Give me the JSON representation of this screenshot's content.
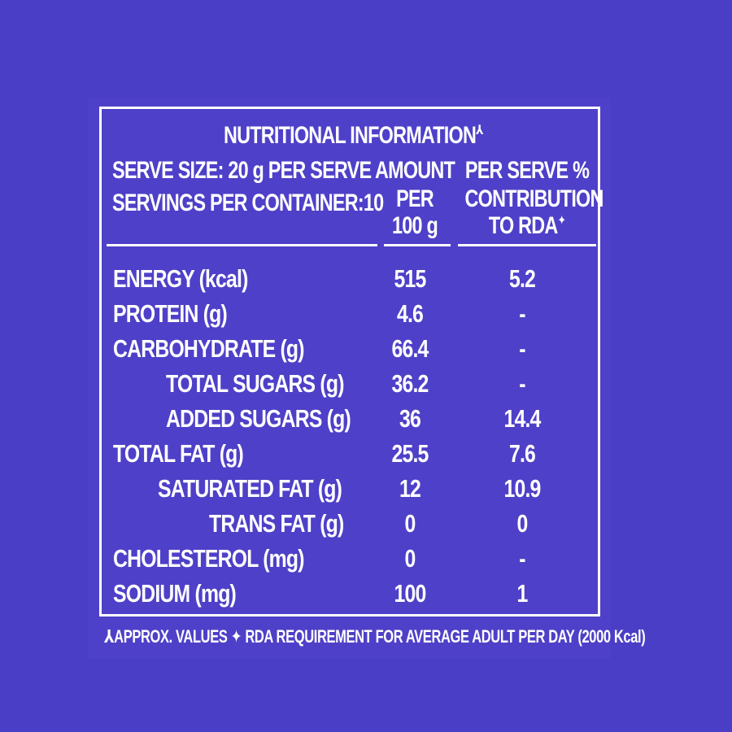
{
  "label": {
    "title": "NUTRITIONAL INFORMATION",
    "title_mark": "⅄",
    "serve_size": "SERVE SIZE: 20 g PER SERVE",
    "servings": "SERVINGS  PER CONTAINER:10",
    "col_amount": [
      "AMOUNT",
      "PER",
      "100 g"
    ],
    "col_rda": [
      "PER SERVE %",
      "CONTRIBUTION",
      "TO RDA"
    ],
    "rda_mark": "✦",
    "rows": [
      {
        "name": "ENERGY (kcal)",
        "amount": "515",
        "rda": "5.2",
        "indent": 0
      },
      {
        "name": "PROTEIN (g)",
        "amount": "4.6",
        "rda": "-",
        "indent": 0
      },
      {
        "name": "CARBOHYDRATE (g)",
        "amount": "66.4",
        "rda": "-",
        "indent": 0
      },
      {
        "name": "TOTAL SUGARS (g)",
        "amount": "36.2",
        "rda": "-",
        "indent": 2
      },
      {
        "name": "ADDED SUGARS (g)",
        "amount": "36",
        "rda": "14.4",
        "indent": 2
      },
      {
        "name": "TOTAL FAT (g)",
        "amount": "25.5",
        "rda": "7.6",
        "indent": 0
      },
      {
        "name": "SATURATED FAT (g)",
        "amount": "12",
        "rda": "10.9",
        "indent": 1
      },
      {
        "name": "TRANS FAT (g)",
        "amount": "0",
        "rda": "0",
        "indent": 3
      },
      {
        "name": "CHOLESTEROL (mg)",
        "amount": "0",
        "rda": "-",
        "indent": 0
      },
      {
        "name": "SODIUM  (mg)",
        "amount": "100",
        "rda": "1",
        "indent": 0
      }
    ],
    "footnote": "⅄APPROX. VALUES ✦ RDA REQUIREMENT FOR AVERAGE ADULT PER DAY (2000 Kcal)"
  },
  "colors": {
    "background": "#4a3ec6",
    "panel": "#4e40c8",
    "text": "#ffffff"
  }
}
